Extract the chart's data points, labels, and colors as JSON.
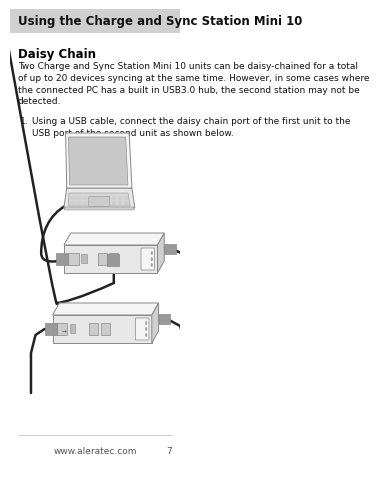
{
  "page_bg": "#ffffff",
  "header_bg": "#d0d0d0",
  "header_text": "Using the Charge and Sync Station Mini 10",
  "header_text_color": "#111111",
  "header_fontsize": 8.5,
  "section_title": "Daisy Chain",
  "section_title_fontsize": 8.5,
  "body_text": "Two Charge and Sync Station Mini 10 units can be daisy-chained for a total\nof up to 20 devices syncing at the same time. However, in some cases where\nthe connected PC has a built in USB3.0 hub, the second station may not be\ndetected.",
  "body_fontsize": 6.5,
  "list_number": "1.",
  "list_text": "Using a USB cable, connect the daisy chain port of the first unit to the\nUSB port of the second unit as shown below.",
  "list_fontsize": 6.5,
  "footer_text": "www.aleratec.com",
  "footer_page": "7",
  "footer_fontsize": 6.5,
  "edge_color": "#888888",
  "cable_color": "#222222",
  "face_light": "#f5f5f5",
  "face_mid": "#e8e8e8",
  "face_dark": "#d0d0d0"
}
